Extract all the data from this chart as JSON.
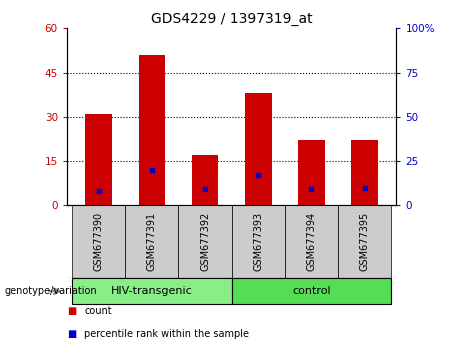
{
  "title": "GDS4229 / 1397319_at",
  "categories": [
    "GSM677390",
    "GSM677391",
    "GSM677392",
    "GSM677393",
    "GSM677394",
    "GSM677395"
  ],
  "count_values": [
    31,
    51,
    17,
    38,
    22,
    22
  ],
  "percentile_values": [
    8,
    20,
    9,
    17,
    9,
    10
  ],
  "left_ylim": [
    0,
    60
  ],
  "right_ylim": [
    0,
    100
  ],
  "left_yticks": [
    0,
    15,
    30,
    45,
    60
  ],
  "right_yticks": [
    0,
    25,
    50,
    75,
    100
  ],
  "right_yticklabels": [
    "0",
    "25",
    "50",
    "75",
    "100%"
  ],
  "left_yticklabels": [
    "0",
    "15",
    "30",
    "45",
    "60"
  ],
  "bar_color": "#cc0000",
  "dot_color": "#0000cc",
  "groups": [
    {
      "label": "HIV-transgenic",
      "start": 0,
      "end": 2,
      "color": "#88ee88"
    },
    {
      "label": "control",
      "start": 3,
      "end": 5,
      "color": "#55dd55"
    }
  ],
  "group_label": "genotype/variation",
  "legend_items": [
    {
      "label": "count",
      "color": "#cc0000"
    },
    {
      "label": "percentile rank within the sample",
      "color": "#0000cc"
    }
  ],
  "cell_color": "#cccccc",
  "plot_bg": "#ffffff",
  "dotted_lines": [
    15,
    30,
    45
  ],
  "title_fontsize": 10,
  "tick_fontsize": 7.5,
  "bar_width": 0.5
}
